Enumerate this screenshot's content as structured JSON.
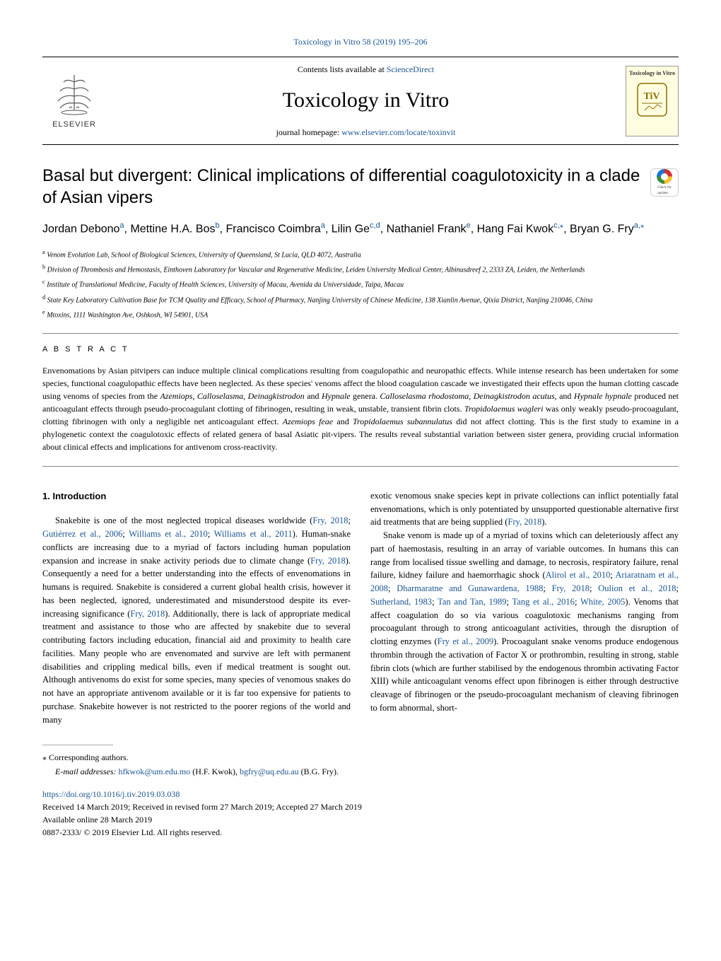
{
  "top_link": {
    "prefix": "",
    "text": "Toxicology in Vitro 58 (2019) 195–206"
  },
  "header": {
    "contents_prefix": "Contents lists available at ",
    "contents_link": "ScienceDirect",
    "journal_name": "Toxicology in Vitro",
    "homepage_prefix": "journal homepage: ",
    "homepage_link": "www.elsevier.com/locate/toxinvit",
    "elsevier_label": "ELSEVIER",
    "cover_title": "Toxicology in Vitro"
  },
  "check_badge": {
    "line1": "Check for",
    "line2": "updates"
  },
  "title": "Basal but divergent: Clinical implications of differential coagulotoxicity in a clade of Asian vipers",
  "authors_html": "Jordan Debono<sup><a>a</a></sup>, Mettine H.A. Bos<sup><a>b</a></sup>, Francisco Coimbra<sup><a>a</a></sup>, Lilin Ge<sup><a>c,d</a></sup>, Nathaniel Frank<sup><a>e</a></sup>, Hang Fai Kwok<sup><a>c,</a>⁎</sup>, Bryan G. Fry<sup><a>a,</a>⁎</sup>",
  "affiliations": {
    "a": "Venom Evolution Lab, School of Biological Sciences, University of Queensland, St Lucia, QLD 4072, Australia",
    "b": "Division of Thrombosis and Hemostasis, Einthoven Laboratory for Vascular and Regenerative Medicine, Leiden University Medical Center, Albinusdreef 2, 2333 ZA, Leiden, the Netherlands",
    "c": "Institute of Translational Medicine, Faculty of Health Sciences, University of Macau, Avenida da Universidade, Taipa, Macau",
    "d": "State Key Laboratory Cultivation Base for TCM Quality and Efficacy, School of Pharmacy, Nanjing University of Chinese Medicine, 138 Xianlin Avenue, Qixia District, Nanjing 210046, China",
    "e": "Mtoxins, 1111 Washington Ave, Oshkosh, WI 54901, USA"
  },
  "abstract": {
    "label": "A B S T R A C T",
    "text": "Envenomations by Asian pitvipers can induce multiple clinical complications resulting from coagulopathic and neuropathic effects. While intense research has been undertaken for some species, functional coagulopathic effects have been neglected. As these species' venoms affect the blood coagulation cascade we investigated their effects upon the human clotting cascade using venoms of species from the <em>Azemiops, Calloselasma, Deinagkistrodon</em> and <em>Hypnale</em> genera. <em>Calloselasma rhodostoma, Deinagkistrodon acutus,</em> and <em>Hypnale hypnale</em> produced net anticoagulant effects through pseudo-procoagulant clotting of fibrinogen, resulting in weak, unstable, transient fibrin clots. <em>Tropidolaemus wagleri</em> was only weakly pseudo-procoagulant, clotting fibrinogen with only a negligible net anticoagulant effect. <em>Azemiops feae</em> and <em>Tropidolaemus subannulatus</em> did not affect clotting. This is the first study to examine in a phylogenetic context the coagulotoxic effects of related genera of basal Asiatic pit-vipers. The results reveal substantial variation between sister genera, providing crucial information about clinical effects and implications for antivenom cross-reactivity."
  },
  "intro": {
    "heading": "1. Introduction",
    "col1_p1": "Snakebite is one of the most neglected tropical diseases worldwide (<a>Fry, 2018</a>; <a>Gutiérrez et al., 2006</a>; <a>Williams et al., 2010</a>; <a>Williams et al., 2011</a>). Human-snake conflicts are increasing due to a myriad of factors including human population expansion and increase in snake activity periods due to climate change (<a>Fry, 2018</a>). Consequently a need for a better understanding into the effects of envenomations in humans is required. Snakebite is considered a current global health crisis, however it has been neglected, ignored, underestimated and misunderstood despite its ever-increasing significance (<a>Fry, 2018</a>). Additionally, there is lack of appropriate medical treatment and assistance to those who are affected by snakebite due to several contributing factors including education, financial aid and proximity to health care facilities. Many people who are envenomated and survive are left with permanent disabilities and crippling medical bills, even if medical treatment is sought out. Although antivenoms do exist for some species, many species of venomous snakes do not have an appropriate antivenom available or it is far too expensive for patients to purchase. Snakebite however is not restricted to the poorer regions of the world and many",
    "col2_p1": "exotic venomous snake species kept in private collections can inflict potentially fatal envenomations, which is only potentiated by unsupported questionable alternative first aid treatments that are being supplied (<a>Fry, 2018</a>).",
    "col2_p2": "Snake venom is made up of a myriad of toxins which can deleteriously affect any part of haemostasis, resulting in an array of variable outcomes. In humans this can range from localised tissue swelling and damage, to necrosis, respiratory failure, renal failure, kidney failure and haemorrhagic shock (<a>Alirol et al., 2010</a>; <a>Ariaratnam et al., 2008</a>; <a>Dharmaratne and Gunawardena, 1988</a>; <a>Fry, 2018</a>; <a>Oulion et al., 2018</a>; <a>Sutherland, 1983</a>; <a>Tan and Tan, 1989</a>; <a>Tang et al., 2016</a>; <a>White, 2005</a>). Venoms that affect coagulation do so via various coagulotoxic mechanisms ranging from procoagulant through to strong anticoagulant activities, through the disruption of clotting enzymes (<a>Fry et al., 2009</a>). Procoagulant snake venoms produce endogenous thrombin through the activation of Factor X or prothrombin, resulting in strong, stable fibrin clots (which are further stabilised by the endogenous thrombin activating Factor XIII) while anticoagulant venoms effect upon fibrinogen is either through destructive cleavage of fibrinogen or the pseudo-procoagulant mechanism of cleaving fibrinogen to form abnormal, short-"
  },
  "footer": {
    "corr_label": "⁎ Corresponding authors.",
    "emails_prefix": "E-mail addresses:",
    "email1": "hfkwok@um.edu.mo",
    "email1_name": "(H.F. Kwok),",
    "email2": "bgfry@uq.edu.au",
    "email2_name": "(B.G. Fry).",
    "doi": "https://doi.org/10.1016/j.tiv.2019.03.038",
    "received": "Received 14 March 2019; Received in revised form 27 March 2019; Accepted 27 March 2019",
    "available": "Available online 28 March 2019",
    "copyright": "0887-2333/ © 2019 Elsevier Ltd. All rights reserved."
  }
}
